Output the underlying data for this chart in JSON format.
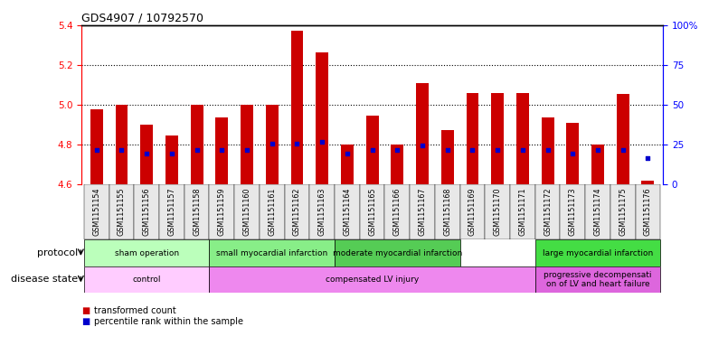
{
  "title": "GDS4907 / 10792570",
  "samples": [
    "GSM1151154",
    "GSM1151155",
    "GSM1151156",
    "GSM1151157",
    "GSM1151158",
    "GSM1151159",
    "GSM1151160",
    "GSM1151161",
    "GSM1151162",
    "GSM1151163",
    "GSM1151164",
    "GSM1151165",
    "GSM1151166",
    "GSM1151167",
    "GSM1151168",
    "GSM1151169",
    "GSM1151170",
    "GSM1151171",
    "GSM1151172",
    "GSM1151173",
    "GSM1151174",
    "GSM1151175",
    "GSM1151176"
  ],
  "bar_values": [
    4.975,
    5.0,
    4.9,
    4.845,
    5.0,
    4.935,
    5.0,
    5.0,
    5.37,
    5.26,
    4.8,
    4.945,
    4.8,
    5.11,
    4.875,
    5.06,
    5.06,
    5.06,
    4.935,
    4.91,
    4.8,
    5.055,
    4.62
  ],
  "percentile_values": [
    4.775,
    4.775,
    4.755,
    4.755,
    4.775,
    4.775,
    4.775,
    4.805,
    4.805,
    4.815,
    4.755,
    4.775,
    4.775,
    4.795,
    4.775,
    4.775,
    4.775,
    4.775,
    4.775,
    4.755,
    4.775,
    4.775,
    4.735
  ],
  "bar_bottom": 4.6,
  "ylim_left": [
    4.6,
    5.4
  ],
  "ylim_right": [
    0,
    100
  ],
  "yticks_left": [
    4.6,
    4.8,
    5.0,
    5.2,
    5.4
  ],
  "yticks_right": [
    0,
    25,
    50,
    75,
    100
  ],
  "ytick_labels_right": [
    "0",
    "25",
    "50",
    "75",
    "100%"
  ],
  "grid_values": [
    4.8,
    5.0,
    5.2
  ],
  "bar_color": "#cc0000",
  "percentile_color": "#0000cc",
  "protocol_groups": [
    {
      "label": "sham operation",
      "start": 0,
      "end": 4,
      "color": "#bbffbb"
    },
    {
      "label": "small myocardial infarction",
      "start": 5,
      "end": 9,
      "color": "#88ee88"
    },
    {
      "label": "moderate myocardial infarction",
      "start": 10,
      "end": 14,
      "color": "#55cc55"
    },
    {
      "label": "large myocardial infarction",
      "start": 18,
      "end": 22,
      "color": "#44dd44"
    }
  ],
  "disease_groups": [
    {
      "label": "control",
      "start": 0,
      "end": 4,
      "color": "#ffccff"
    },
    {
      "label": "compensated LV injury",
      "start": 5,
      "end": 17,
      "color": "#ee88ee"
    },
    {
      "label": "progressive decompensati\non of LV and heart failure",
      "start": 18,
      "end": 22,
      "color": "#dd66dd"
    }
  ],
  "protocol_row_label": "protocol",
  "disease_row_label": "disease state",
  "legend_items": [
    {
      "label": "transformed count",
      "color": "#cc0000"
    },
    {
      "label": "percentile rank within the sample",
      "color": "#0000cc"
    }
  ],
  "bg_color": "#e8e8e8"
}
